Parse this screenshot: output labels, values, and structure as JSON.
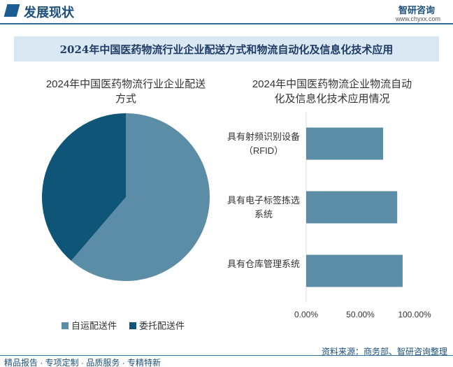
{
  "header": {
    "section": "发展现状",
    "logo": "智研咨询",
    "url": "www.chyxx.com"
  },
  "page_title": "2024年中国医药物流行业企业配送方式和物流自动化及信息化技术应用",
  "chart_data": [
    {
      "type": "pie",
      "title": "2024年中国医药物流行业企业配送方式",
      "categories": [
        "自运配送件",
        "委托配送件"
      ],
      "values": [
        61.3,
        38.7
      ],
      "colors": [
        "#5b8da6",
        "#0e5578"
      ],
      "legend": "bottom"
    },
    {
      "type": "bar",
      "orientation": "horizontal",
      "title": "2024年中国医药物流企业物流自动化及信息化技术应用情况",
      "categories": [
        "具有射频识别设备（RFID）",
        "具有电子标签拣选系统",
        "具有仓库管理系统"
      ],
      "values": [
        71,
        84,
        89
      ],
      "color": "#5b8da6",
      "xlim": [
        0,
        100
      ],
      "xticks": [
        {
          "value": 0,
          "label": "0.00%"
        },
        {
          "value": 50,
          "label": "50.00%"
        },
        {
          "value": 100,
          "label": "100.00%"
        }
      ]
    }
  ],
  "footer": {
    "source": "资料来源：商务部、智研咨询整理",
    "slogan": "精品报告 · 专项定制 · 品质服务 · 专精特新"
  }
}
